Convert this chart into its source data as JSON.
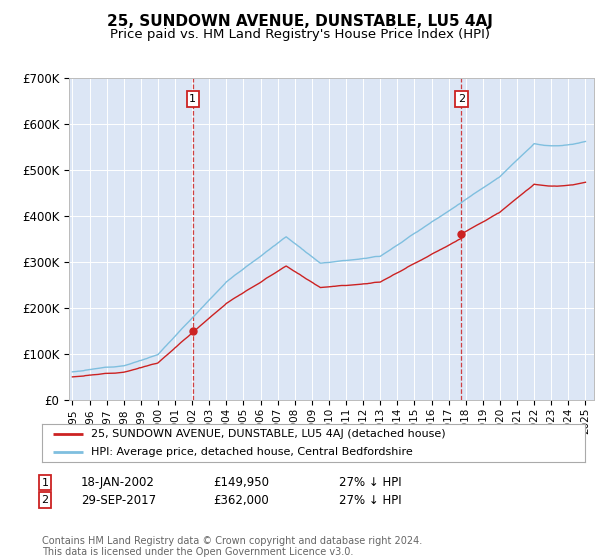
{
  "title": "25, SUNDOWN AVENUE, DUNSTABLE, LU5 4AJ",
  "subtitle": "Price paid vs. HM Land Registry's House Price Index (HPI)",
  "title_fontsize": 11,
  "subtitle_fontsize": 9.5,
  "background_color": "#ffffff",
  "plot_bg_color": "#dce6f5",
  "grid_color": "#ffffff",
  "hpi_color": "#7fbfdf",
  "price_color": "#cc2222",
  "dashed_color": "#cc2222",
  "annotation_box_color": "#cc2222",
  "ylim": [
    0,
    700000
  ],
  "yticks": [
    0,
    100000,
    200000,
    300000,
    400000,
    500000,
    600000,
    700000
  ],
  "ytick_labels": [
    "£0",
    "£100K",
    "£200K",
    "£300K",
    "£400K",
    "£500K",
    "£600K",
    "£700K"
  ],
  "sale1_x": 2002.04,
  "sale1_price": 149950,
  "sale1_label": "1",
  "sale2_x": 2017.75,
  "sale2_price": 362000,
  "sale2_label": "2",
  "legend_label1": "25, SUNDOWN AVENUE, DUNSTABLE, LU5 4AJ (detached house)",
  "legend_label2": "HPI: Average price, detached house, Central Bedfordshire",
  "note1_label": "1",
  "note1_date": "18-JAN-2002",
  "note1_price": "£149,950",
  "note1_hpi": "27% ↓ HPI",
  "note2_label": "2",
  "note2_date": "29-SEP-2017",
  "note2_price": "£362,000",
  "note2_hpi": "27% ↓ HPI",
  "footer": "Contains HM Land Registry data © Crown copyright and database right 2024.\nThis data is licensed under the Open Government Licence v3.0.",
  "xlim_start": 1994.8,
  "xlim_end": 2025.5,
  "xtick_years": [
    1995,
    1996,
    1997,
    1998,
    1999,
    2000,
    2001,
    2002,
    2003,
    2004,
    2005,
    2006,
    2007,
    2008,
    2009,
    2010,
    2011,
    2012,
    2013,
    2014,
    2015,
    2016,
    2017,
    2018,
    2019,
    2020,
    2021,
    2022,
    2023,
    2024,
    2025
  ]
}
